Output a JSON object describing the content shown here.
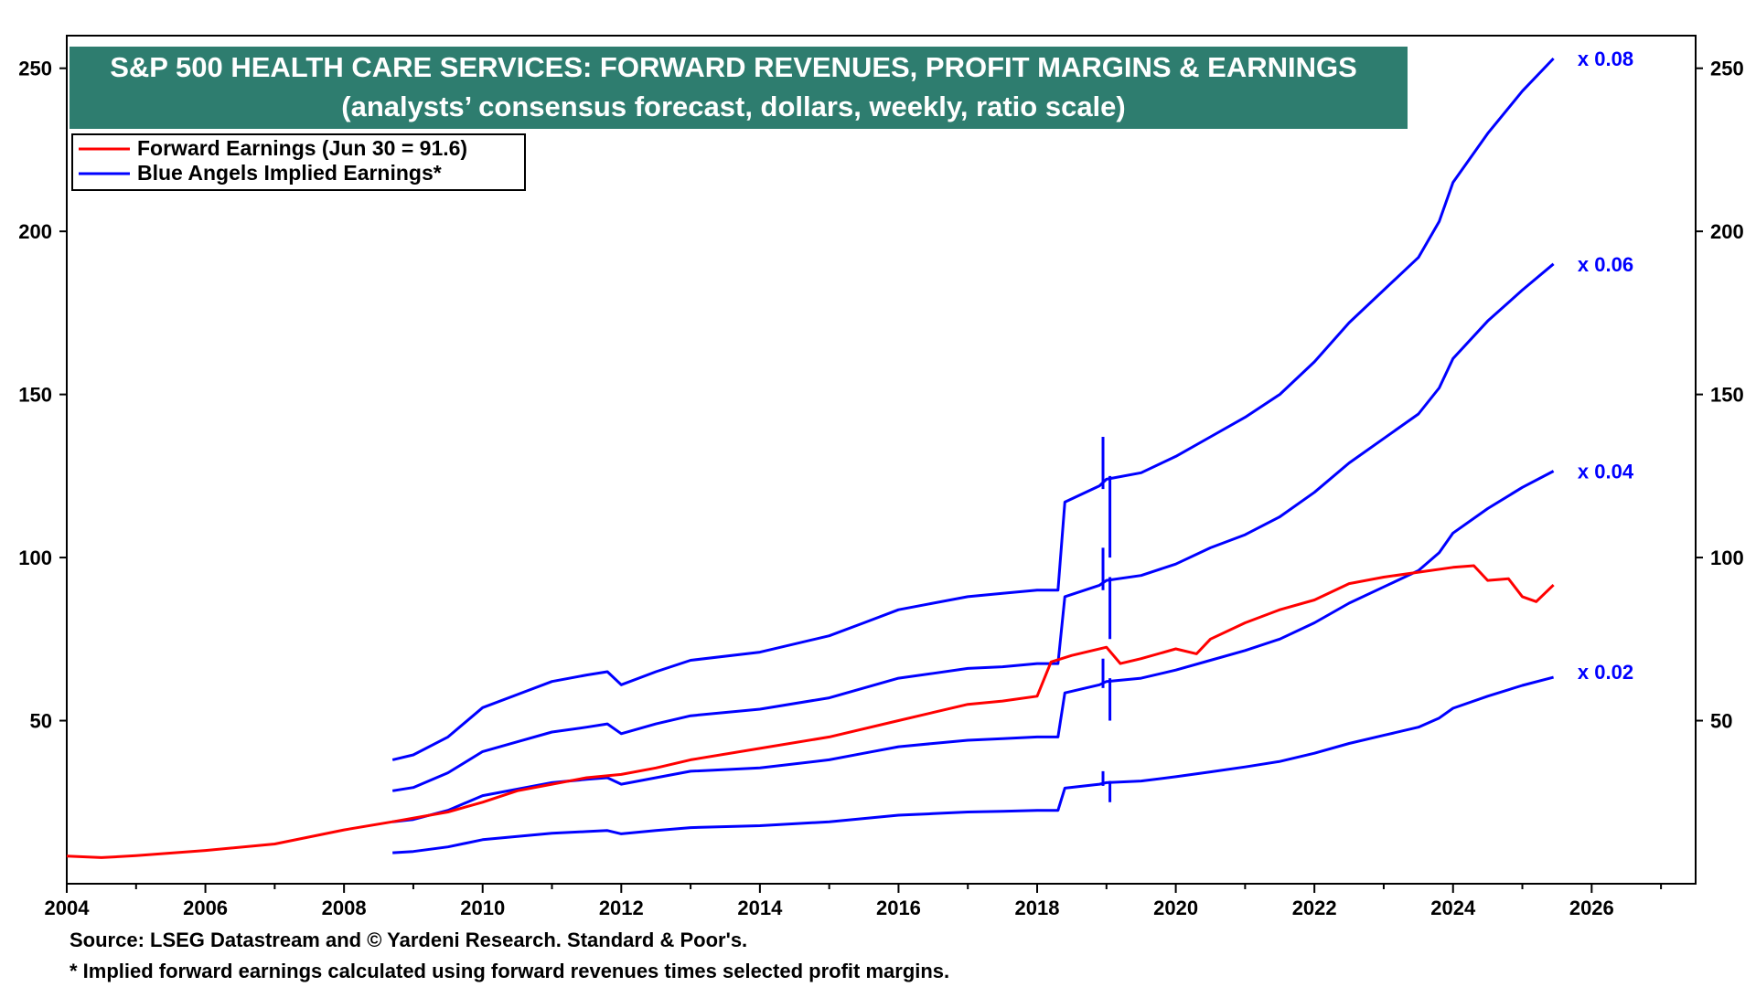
{
  "chart_data": {
    "type": "line",
    "title": "S&P 500 HEALTH CARE SERVICES: FORWARD REVENUES, PROFIT MARGINS & EARNINGS",
    "subtitle": "(analysts’ consensus forecast, dollars, weekly, ratio scale)",
    "xlabel": "",
    "ylabel": "",
    "xlim": [
      2004,
      2027.5
    ],
    "ylim": [
      0,
      260
    ],
    "y_scale": "ratio",
    "x_ticks": [
      "2004",
      "2006",
      "2008",
      "2010",
      "2012",
      "2014",
      "2016",
      "2018",
      "2020",
      "2022",
      "2024",
      "2026"
    ],
    "y_ticks": [
      50,
      100,
      150,
      200,
      250
    ],
    "grid": false,
    "legend_position": "top-left",
    "legend": [
      {
        "label": "Forward Earnings (Jun 30 = 91.6)",
        "color": "#ff0000"
      },
      {
        "label": "Blue Angels Implied Earnings*",
        "color": "#0000ff"
      }
    ],
    "series": [
      {
        "name": "Forward Earnings (Jun 30 = 91.6)",
        "color": "#ff0000",
        "points": [
          [
            2004.0,
            8.5
          ],
          [
            2004.5,
            8.0
          ],
          [
            2005.0,
            8.6
          ],
          [
            2006.0,
            10.2
          ],
          [
            2007.0,
            12.2
          ],
          [
            2008.0,
            16.5
          ],
          [
            2008.7,
            19.0
          ],
          [
            2009.5,
            22.0
          ],
          [
            2010.0,
            25.0
          ],
          [
            2010.5,
            28.5
          ],
          [
            2011.0,
            30.5
          ],
          [
            2011.5,
            32.5
          ],
          [
            2012.0,
            33.5
          ],
          [
            2012.5,
            35.5
          ],
          [
            2013.0,
            38.0
          ],
          [
            2014.0,
            41.5
          ],
          [
            2015.0,
            45.0
          ],
          [
            2016.0,
            50.0
          ],
          [
            2016.5,
            52.5
          ],
          [
            2017.0,
            55.0
          ],
          [
            2017.5,
            56.0
          ],
          [
            2018.0,
            57.5
          ],
          [
            2018.2,
            68.0
          ],
          [
            2018.5,
            70.0
          ],
          [
            2019.0,
            72.5
          ],
          [
            2019.2,
            67.5
          ],
          [
            2019.5,
            69.0
          ],
          [
            2020.0,
            72.0
          ],
          [
            2020.3,
            70.5
          ],
          [
            2020.5,
            75.0
          ],
          [
            2021.0,
            80.0
          ],
          [
            2021.5,
            84.0
          ],
          [
            2022.0,
            87.0
          ],
          [
            2022.5,
            92.0
          ],
          [
            2023.0,
            94.0
          ],
          [
            2023.5,
            95.5
          ],
          [
            2024.0,
            97.0
          ],
          [
            2024.3,
            97.5
          ],
          [
            2024.5,
            93.0
          ],
          [
            2024.8,
            93.5
          ],
          [
            2025.0,
            88.0
          ],
          [
            2025.2,
            86.5
          ],
          [
            2025.45,
            91.6
          ]
        ]
      },
      {
        "name": "x 0.08",
        "color": "#0000ff",
        "points": [
          [
            2008.7,
            38.0
          ],
          [
            2009.0,
            39.5
          ],
          [
            2009.5,
            45.0
          ],
          [
            2010.0,
            54.0
          ],
          [
            2010.5,
            58.0
          ],
          [
            2011.0,
            62.0
          ],
          [
            2011.5,
            64.0
          ],
          [
            2011.8,
            65.0
          ],
          [
            2012.0,
            61.0
          ],
          [
            2012.5,
            65.0
          ],
          [
            2013.0,
            68.5
          ],
          [
            2014.0,
            71.0
          ],
          [
            2015.0,
            76.0
          ],
          [
            2015.5,
            80.0
          ],
          [
            2016.0,
            84.0
          ],
          [
            2016.5,
            86.0
          ],
          [
            2017.0,
            88.0
          ],
          [
            2017.5,
            89.0
          ],
          [
            2018.0,
            90.0
          ],
          [
            2018.3,
            90.0
          ],
          [
            2018.4,
            117.0
          ],
          [
            2018.9,
            122.0
          ],
          [
            2019.0,
            124.0
          ],
          [
            2019.5,
            126.0
          ],
          [
            2020.0,
            131.0
          ],
          [
            2020.5,
            137.0
          ],
          [
            2021.0,
            143.0
          ],
          [
            2021.5,
            150.0
          ],
          [
            2022.0,
            160.0
          ],
          [
            2022.5,
            172.0
          ],
          [
            2023.0,
            182.0
          ],
          [
            2023.5,
            192.0
          ],
          [
            2023.8,
            203.0
          ],
          [
            2024.0,
            215.0
          ],
          [
            2024.5,
            230.0
          ],
          [
            2025.0,
            243.0
          ],
          [
            2025.45,
            253.0
          ]
        ]
      },
      {
        "name": "x 0.06",
        "color": "#0000ff",
        "points": [
          [
            2008.7,
            28.5
          ],
          [
            2009.0,
            29.5
          ],
          [
            2009.5,
            34.0
          ],
          [
            2010.0,
            40.5
          ],
          [
            2010.5,
            43.5
          ],
          [
            2011.0,
            46.5
          ],
          [
            2011.5,
            48.0
          ],
          [
            2011.8,
            49.0
          ],
          [
            2012.0,
            46.0
          ],
          [
            2012.5,
            49.0
          ],
          [
            2013.0,
            51.5
          ],
          [
            2014.0,
            53.5
          ],
          [
            2015.0,
            57.0
          ],
          [
            2015.5,
            60.0
          ],
          [
            2016.0,
            63.0
          ],
          [
            2016.5,
            64.5
          ],
          [
            2017.0,
            66.0
          ],
          [
            2017.5,
            66.5
          ],
          [
            2018.0,
            67.5
          ],
          [
            2018.3,
            67.5
          ],
          [
            2018.4,
            88.0
          ],
          [
            2018.9,
            91.5
          ],
          [
            2019.0,
            93.0
          ],
          [
            2019.5,
            94.5
          ],
          [
            2020.0,
            98.0
          ],
          [
            2020.5,
            103.0
          ],
          [
            2021.0,
            107.0
          ],
          [
            2021.5,
            112.5
          ],
          [
            2022.0,
            120.0
          ],
          [
            2022.5,
            129.0
          ],
          [
            2023.0,
            136.5
          ],
          [
            2023.5,
            144.0
          ],
          [
            2023.8,
            152.0
          ],
          [
            2024.0,
            161.0
          ],
          [
            2024.5,
            172.5
          ],
          [
            2025.0,
            182.0
          ],
          [
            2025.45,
            190.0
          ]
        ]
      },
      {
        "name": "x 0.04",
        "color": "#0000ff",
        "points": [
          [
            2008.7,
            19.0
          ],
          [
            2009.0,
            19.7
          ],
          [
            2009.5,
            22.5
          ],
          [
            2010.0,
            27.0
          ],
          [
            2010.5,
            29.0
          ],
          [
            2011.0,
            31.0
          ],
          [
            2011.5,
            32.0
          ],
          [
            2011.8,
            32.5
          ],
          [
            2012.0,
            30.5
          ],
          [
            2012.5,
            32.5
          ],
          [
            2013.0,
            34.5
          ],
          [
            2014.0,
            35.5
          ],
          [
            2015.0,
            38.0
          ],
          [
            2015.5,
            40.0
          ],
          [
            2016.0,
            42.0
          ],
          [
            2016.5,
            43.0
          ],
          [
            2017.0,
            44.0
          ],
          [
            2017.5,
            44.5
          ],
          [
            2018.0,
            45.0
          ],
          [
            2018.3,
            45.0
          ],
          [
            2018.4,
            58.5
          ],
          [
            2018.9,
            61.0
          ],
          [
            2019.0,
            62.0
          ],
          [
            2019.5,
            63.0
          ],
          [
            2020.0,
            65.5
          ],
          [
            2020.5,
            68.5
          ],
          [
            2021.0,
            71.5
          ],
          [
            2021.5,
            75.0
          ],
          [
            2022.0,
            80.0
          ],
          [
            2022.5,
            86.0
          ],
          [
            2023.0,
            91.0
          ],
          [
            2023.5,
            96.0
          ],
          [
            2023.8,
            101.5
          ],
          [
            2024.0,
            107.5
          ],
          [
            2024.5,
            115.0
          ],
          [
            2025.0,
            121.5
          ],
          [
            2025.45,
            126.5
          ]
        ]
      },
      {
        "name": "x 0.02",
        "color": "#0000ff",
        "points": [
          [
            2008.7,
            9.5
          ],
          [
            2009.0,
            9.9
          ],
          [
            2009.5,
            11.3
          ],
          [
            2010.0,
            13.5
          ],
          [
            2010.5,
            14.5
          ],
          [
            2011.0,
            15.5
          ],
          [
            2011.5,
            16.0
          ],
          [
            2011.8,
            16.3
          ],
          [
            2012.0,
            15.3
          ],
          [
            2012.5,
            16.3
          ],
          [
            2013.0,
            17.2
          ],
          [
            2014.0,
            17.8
          ],
          [
            2015.0,
            19.0
          ],
          [
            2015.5,
            20.0
          ],
          [
            2016.0,
            21.0
          ],
          [
            2016.5,
            21.5
          ],
          [
            2017.0,
            22.0
          ],
          [
            2017.5,
            22.2
          ],
          [
            2018.0,
            22.5
          ],
          [
            2018.3,
            22.5
          ],
          [
            2018.4,
            29.3
          ],
          [
            2018.9,
            30.5
          ],
          [
            2019.0,
            31.0
          ],
          [
            2019.5,
            31.5
          ],
          [
            2020.0,
            32.8
          ],
          [
            2020.5,
            34.3
          ],
          [
            2021.0,
            35.8
          ],
          [
            2021.5,
            37.5
          ],
          [
            2022.0,
            40.0
          ],
          [
            2022.5,
            43.0
          ],
          [
            2023.0,
            45.5
          ],
          [
            2023.5,
            48.0
          ],
          [
            2023.8,
            50.8
          ],
          [
            2024.0,
            53.8
          ],
          [
            2024.5,
            57.5
          ],
          [
            2025.0,
            60.8
          ],
          [
            2025.45,
            63.3
          ]
        ]
      }
    ],
    "series_labels": [
      {
        "text": "x 0.08",
        "at": [
          2026.2,
          253.0
        ]
      },
      {
        "text": "x 0.06",
        "at": [
          2026.2,
          190.0
        ]
      },
      {
        "text": "x 0.04",
        "at": [
          2026.2,
          126.5
        ]
      },
      {
        "text": "x 0.02",
        "at": [
          2026.2,
          65.0
        ]
      }
    ],
    "spikes": [
      {
        "x": 2018.95,
        "from": 121.0,
        "to": 137.0
      },
      {
        "x": 2019.05,
        "from": 100.0,
        "to": 125.0
      },
      {
        "x": 2018.95,
        "from": 90.0,
        "to": 103.0
      },
      {
        "x": 2019.05,
        "from": 75.0,
        "to": 94.0
      },
      {
        "x": 2018.95,
        "from": 60.0,
        "to": 69.0
      },
      {
        "x": 2019.05,
        "from": 50.0,
        "to": 63.0
      },
      {
        "x": 2018.95,
        "from": 30.0,
        "to": 34.5
      },
      {
        "x": 2019.05,
        "from": 25.0,
        "to": 31.5
      }
    ]
  },
  "footer": {
    "source": "Source: LSEG Datastream and © Yardeni Research. Standard & Poor's.",
    "note": "* Implied forward earnings calculated using forward revenues times selected profit margins."
  },
  "colors": {
    "title_bg": "#2e7d6f",
    "red": "#ff0000",
    "blue": "#0000ff"
  }
}
